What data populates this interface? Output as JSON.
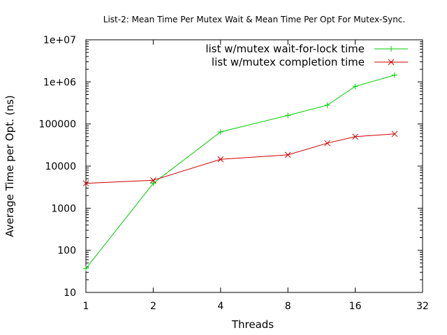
{
  "chart_data": {
    "type": "line",
    "title": "List-2: Mean Time Per Mutex Wait & Mean Time Per Opt For Mutex-Sync.",
    "xlabel": "Threads",
    "ylabel": "Average Time per Opt. (ns)",
    "xscale": "log2",
    "yscale": "log10",
    "xlim": [
      1,
      32
    ],
    "ylim": [
      10,
      10000000
    ],
    "xticks": [
      "1",
      "2",
      "4",
      "8",
      "16",
      "32"
    ],
    "yticks": [
      "10",
      "100",
      "1000",
      "10000",
      "100000",
      "1e+06",
      "1e+07"
    ],
    "grid": false,
    "legend_position": "top-right",
    "series": [
      {
        "name": "list w/mutex wait-for-lock time",
        "color": "#00cc00",
        "marker": "plus",
        "x": [
          1,
          2,
          4,
          8,
          12,
          16,
          24
        ],
        "y": [
          37,
          3900,
          65000,
          160000,
          280000,
          780000,
          1450000
        ]
      },
      {
        "name": "list w/mutex completion time",
        "color": "#cc0000",
        "marker": "cross",
        "x": [
          1,
          2,
          4,
          8,
          12,
          16,
          24
        ],
        "y": [
          3900,
          4600,
          14500,
          18500,
          35000,
          50000,
          58000
        ]
      }
    ]
  }
}
